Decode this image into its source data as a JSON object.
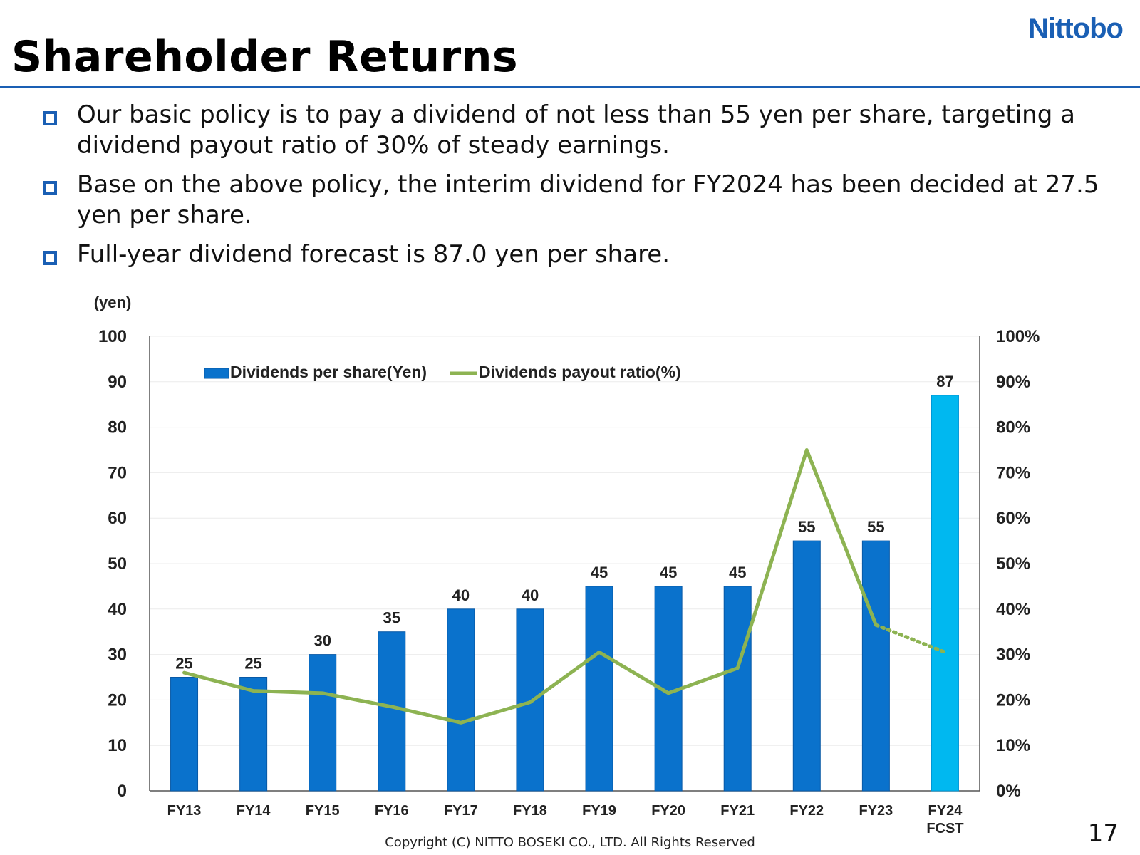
{
  "header": {
    "title": "Shareholder Returns",
    "logo_text": "Nittobo",
    "accent_color": "#1a5fb4"
  },
  "bullets": [
    "Our basic policy is to pay a dividend of not less than 55 yen per share, targeting a dividend payout ratio of 30% of steady earnings.",
    "Base on the above policy, the interim dividend for FY2024 has been decided at 27.5 yen per share.",
    "Full-year dividend forecast is 87.0 yen per share."
  ],
  "chart_data": {
    "type": "bar",
    "y_unit_label": "(yen)",
    "categories": [
      "FY13",
      "FY14",
      "FY15",
      "FY16",
      "FY17",
      "FY18",
      "FY19",
      "FY20",
      "FY21",
      "FY22",
      "FY23",
      "FY24"
    ],
    "category_sublabels": [
      "",
      "",
      "",
      "",
      "",
      "",
      "",
      "",
      "",
      "",
      "",
      "FCST"
    ],
    "ylim": [
      0,
      100
    ],
    "yticks": [
      0,
      10,
      20,
      30,
      40,
      50,
      60,
      70,
      80,
      90,
      100
    ],
    "y2lim": [
      0,
      100
    ],
    "y2ticks": [
      "0%",
      "10%",
      "20%",
      "30%",
      "40%",
      "50%",
      "60%",
      "70%",
      "80%",
      "90%",
      "100%"
    ],
    "series": [
      {
        "name": "Dividends  per share(Yen)",
        "type": "bar",
        "color": "#0a72cc",
        "forecast_color": "#00b8f0",
        "values": [
          25,
          25,
          30,
          35,
          40,
          40,
          45,
          45,
          45,
          55,
          55,
          87
        ],
        "data_labels": [
          "25",
          "25",
          "30",
          "35",
          "40",
          "40",
          "45",
          "45",
          "45",
          "55",
          "55",
          "87"
        ]
      },
      {
        "name": "Dividends  payout ratio(%)",
        "type": "line",
        "axis": "right",
        "color": "#8db352",
        "values": [
          26,
          22,
          21.5,
          18.5,
          15,
          19.5,
          30.5,
          21.5,
          27,
          75,
          36.5,
          30.5
        ],
        "forecast_from_index": 10
      }
    ],
    "legend_position": "top-left"
  },
  "footer": {
    "copyright": "Copyright (C)  NITTO BOSEKI CO., LTD. All Rights Reserved",
    "page_number": "17"
  }
}
